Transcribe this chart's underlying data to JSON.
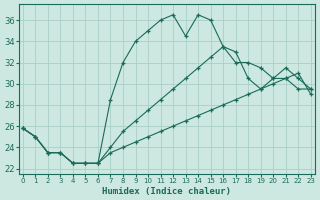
{
  "title": "",
  "xlabel": "Humidex (Indice chaleur)",
  "ylabel": "",
  "background_color": "#cce8e0",
  "grid_color": "#aacfc8",
  "line_color": "#1a6b5a",
  "xlim": [
    -0.3,
    23.3
  ],
  "ylim": [
    21.5,
    37.5
  ],
  "xticks": [
    0,
    1,
    2,
    3,
    4,
    5,
    6,
    7,
    8,
    9,
    10,
    11,
    12,
    13,
    14,
    15,
    16,
    17,
    18,
    19,
    20,
    21,
    22,
    23
  ],
  "yticks": [
    22,
    24,
    26,
    28,
    30,
    32,
    34,
    36
  ],
  "series": [
    {
      "x": [
        0,
        1,
        2,
        3,
        4,
        5,
        6,
        7,
        8,
        9,
        10,
        11,
        12,
        13,
        14,
        15,
        16,
        17,
        18,
        19,
        20,
        21,
        22,
        23
      ],
      "y": [
        25.8,
        25.0,
        23.5,
        23.5,
        22.5,
        22.5,
        22.5,
        28.5,
        32.0,
        34.0,
        35.0,
        36.0,
        36.5,
        34.5,
        36.5,
        36.0,
        33.5,
        32.0,
        32.0,
        31.5,
        30.5,
        30.5,
        29.5,
        29.5
      ]
    },
    {
      "x": [
        0,
        1,
        2,
        3,
        4,
        5,
        6,
        7,
        8,
        9,
        10,
        11,
        12,
        13,
        14,
        15,
        16,
        17,
        18,
        19,
        20,
        21,
        22,
        23
      ],
      "y": [
        25.8,
        25.0,
        23.5,
        23.5,
        22.5,
        22.5,
        22.5,
        23.5,
        24.0,
        24.5,
        25.0,
        25.5,
        26.0,
        26.5,
        27.0,
        27.5,
        28.0,
        28.5,
        29.0,
        29.5,
        30.0,
        30.5,
        31.0,
        29.0
      ]
    },
    {
      "x": [
        0,
        1,
        2,
        3,
        4,
        5,
        6,
        7,
        8,
        9,
        10,
        11,
        12,
        13,
        14,
        15,
        16,
        17,
        18,
        19,
        20,
        21,
        22,
        23
      ],
      "y": [
        25.8,
        25.0,
        23.5,
        23.5,
        22.5,
        22.5,
        22.5,
        24.0,
        25.5,
        26.5,
        27.5,
        28.5,
        29.5,
        30.5,
        31.5,
        32.5,
        33.5,
        33.0,
        30.5,
        29.5,
        30.5,
        31.5,
        30.5,
        29.5
      ]
    }
  ]
}
